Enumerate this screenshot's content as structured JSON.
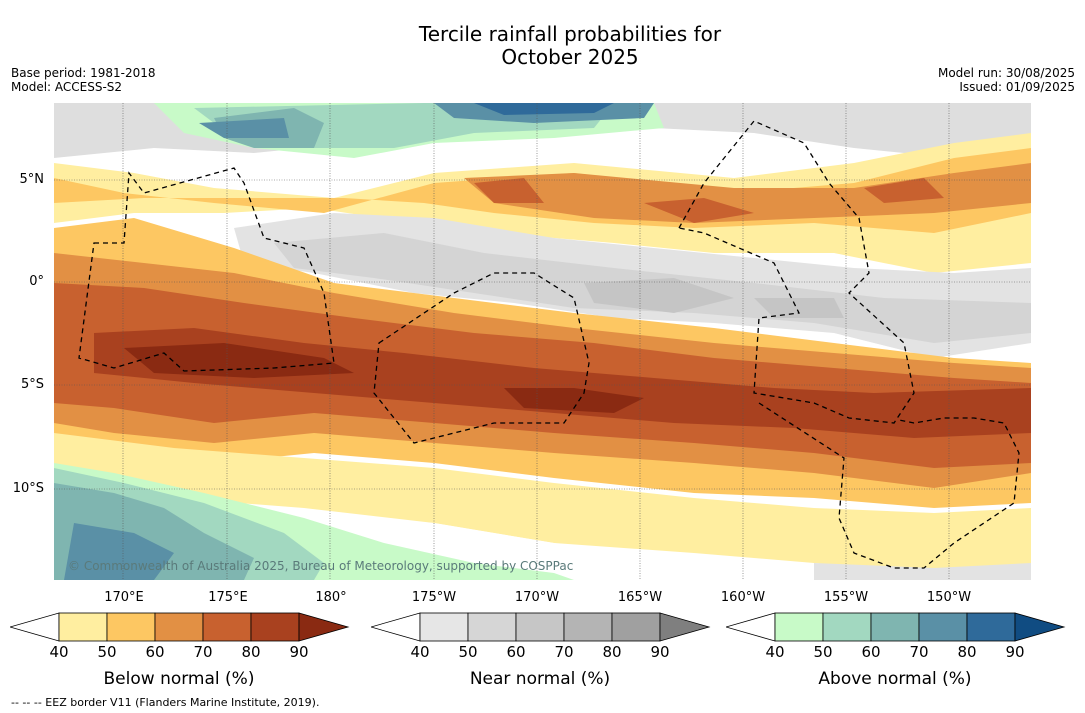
{
  "title_line1": "Tercile rainfall probabilities for",
  "title_line2": "October 2025",
  "base_period": "Base period: 1981-2018",
  "model": "Model: ACCESS-S2",
  "model_run": "Model run: 30/08/2025",
  "issued": "Issued: 01/09/2025",
  "lat_labels": [
    "5°N",
    "0°",
    "5°S",
    "10°S"
  ],
  "lon_labels": [
    "170°E",
    "175°E",
    "180°",
    "175°W",
    "170°W",
    "165°W",
    "160°W",
    "155°W",
    "150°W"
  ],
  "copyright": "© Commonwealth of Australia 2025, Bureau of Meteorology, supported by COSPPac",
  "colorbars": {
    "below": {
      "label": "Below normal (%)",
      "ticks": [
        "40",
        "50",
        "60",
        "70",
        "80",
        "90"
      ],
      "colors": [
        "#ffeea0",
        "#fdc762",
        "#e29044",
        "#c8612f",
        "#a9411f",
        "#8a2a12"
      ]
    },
    "near": {
      "label": "Near normal (%)",
      "ticks": [
        "40",
        "50",
        "60",
        "70",
        "80",
        "90"
      ],
      "colors": [
        "#e6e6e6",
        "#d6d6d6",
        "#c6c6c6",
        "#b4b4b4",
        "#a0a0a0",
        "#7f7f7f"
      ]
    },
    "above": {
      "label": "Above normal (%)",
      "ticks": [
        "40",
        "50",
        "60",
        "70",
        "80",
        "90"
      ],
      "colors": [
        "#c8fac8",
        "#a2d8c0",
        "#7fb5b0",
        "#5a90a6",
        "#2f6a9a",
        "#104c82"
      ]
    }
  },
  "footnote": "-- --  -- EEZ border V11 (Flanders Marine Institute, 2019).",
  "map_colors": {
    "ocean_bg": "#ffffff"
  }
}
